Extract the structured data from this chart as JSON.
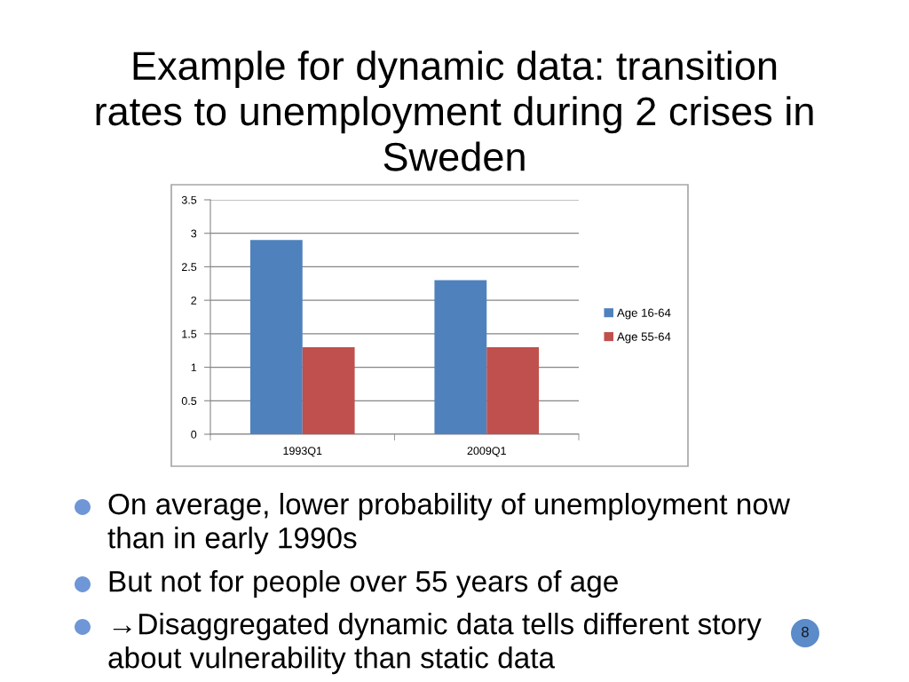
{
  "chart_data": {
    "type": "bar",
    "title": "Example for dynamic data: transition\nrates to unemployment during 2 crises in\nSweden",
    "categories": [
      "1993Q1",
      "2009Q1"
    ],
    "series": [
      {
        "name": "Age 16-64",
        "color": "#4f81bd",
        "values": [
          2.9,
          2.3
        ]
      },
      {
        "name": "Age 55-64",
        "color": "#c0504d",
        "values": [
          1.3,
          1.3
        ]
      }
    ],
    "ylim": [
      0,
      3.5
    ],
    "yticks": [
      0,
      0.5,
      1,
      1.5,
      2,
      2.5,
      3,
      3.5
    ],
    "grid": "y",
    "legend": "right",
    "annotations": [
      "On average, lower probability of unemployment now\nthan in early 1990s",
      "But not for people over 55 years of age",
      "→Disaggregated dynamic data tells different story\nabout vulnerability than static data",
      "8"
    ]
  }
}
